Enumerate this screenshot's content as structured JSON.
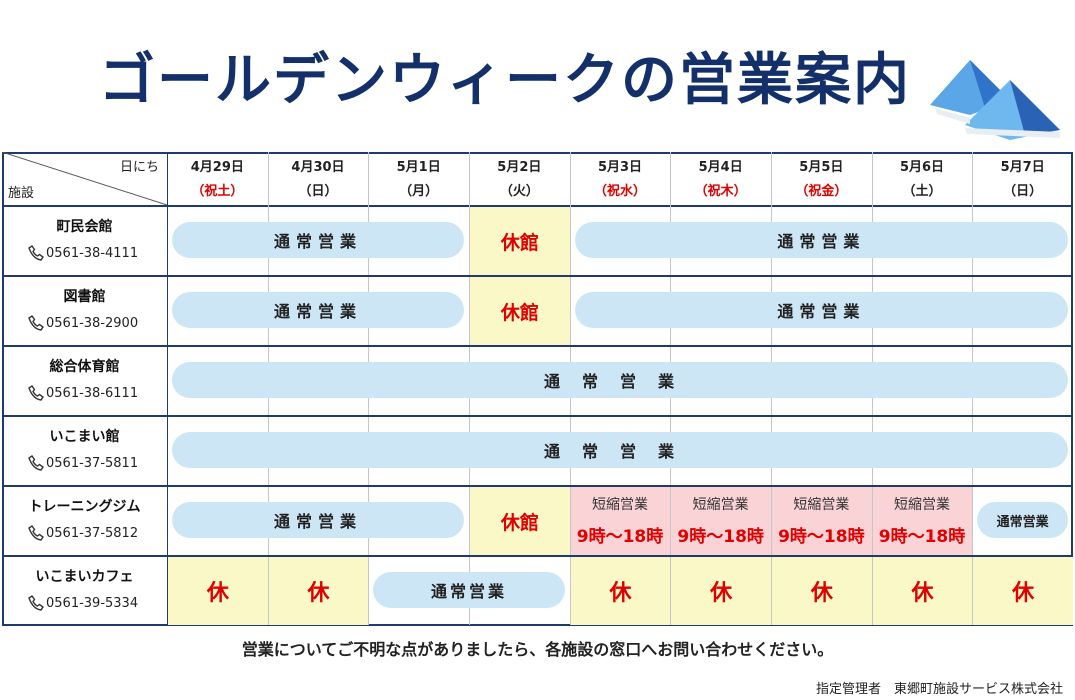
{
  "header": {
    "title": "ゴールデンウィークの営業案内"
  },
  "table": {
    "corner_top": "日にち",
    "corner_bottom": "施設",
    "days": [
      {
        "date": "4月29日",
        "day": "（祝土）",
        "color": "#e00000"
      },
      {
        "date": "4月30日",
        "day": "（日）",
        "color": "#222222"
      },
      {
        "date": "5月1日",
        "day": "（月）",
        "color": "#222222"
      },
      {
        "date": "5月2日",
        "day": "（火）",
        "color": "#222222"
      },
      {
        "date": "5月3日",
        "day": "（祝水）",
        "color": "#e00000"
      },
      {
        "date": "5月4日",
        "day": "（祝木）",
        "color": "#e00000"
      },
      {
        "date": "5月5日",
        "day": "（祝金）",
        "color": "#e00000"
      },
      {
        "date": "5月6日",
        "day": "（土）",
        "color": "#222222"
      },
      {
        "date": "5月7日",
        "day": "（日）",
        "color": "#222222"
      }
    ],
    "facilities": [
      {
        "name": "町民会館",
        "phone": "0561-38-4111",
        "segments": [
          {
            "span": 3,
            "style": "pill",
            "label": "通常営業"
          },
          {
            "span": 1,
            "style": "closed",
            "label": "休館"
          },
          {
            "span": 5,
            "style": "pill",
            "label": "通常営業"
          }
        ]
      },
      {
        "name": "図書館",
        "phone": "0561-38-2900",
        "segments": [
          {
            "span": 3,
            "style": "pill",
            "label": "通常営業"
          },
          {
            "span": 1,
            "style": "closed",
            "label": "休館"
          },
          {
            "span": 5,
            "style": "pill",
            "label": "通常営業"
          }
        ]
      },
      {
        "name": "総合体育館",
        "phone": "0561-38-6111",
        "segments": [
          {
            "span": 9,
            "style": "pill",
            "label": "通常営業"
          }
        ]
      },
      {
        "name": "いこまい館",
        "phone": "0561-37-5811",
        "segments": [
          {
            "span": 9,
            "style": "pill",
            "label": "通常営業"
          }
        ]
      },
      {
        "name": "トレーニングジム",
        "phone": "0561-37-5812",
        "segments": [
          {
            "span": 3,
            "style": "pill",
            "label": "通常営業"
          },
          {
            "span": 1,
            "style": "closed",
            "label": "休館"
          },
          {
            "span": 1,
            "style": "short",
            "label": "短縮営業",
            "hours": "9時～18時"
          },
          {
            "span": 1,
            "style": "short",
            "label": "短縮営業",
            "hours": "9時～18時"
          },
          {
            "span": 1,
            "style": "short",
            "label": "短縮営業",
            "hours": "9時～18時"
          },
          {
            "span": 1,
            "style": "short",
            "label": "短縮営業",
            "hours": "9時～18時"
          },
          {
            "span": 1,
            "style": "pill",
            "label": "通常営業"
          }
        ]
      },
      {
        "name": "いこまいカフェ",
        "phone": "0561-39-5334",
        "segments": [
          {
            "span": 1,
            "style": "closed",
            "label": "休"
          },
          {
            "span": 1,
            "style": "closed",
            "label": "休"
          },
          {
            "span": 2,
            "style": "pill",
            "label": "通常営業"
          },
          {
            "span": 1,
            "style": "closed",
            "label": "休"
          },
          {
            "span": 1,
            "style": "closed",
            "label": "休"
          },
          {
            "span": 1,
            "style": "closed",
            "label": "休"
          },
          {
            "span": 1,
            "style": "closed",
            "label": "休"
          },
          {
            "span": 1,
            "style": "closed",
            "label": "休"
          }
        ]
      }
    ]
  },
  "footer": {
    "note": "営業についてご不明な点がありましたら、各施設の窓口へお問い合わせください。",
    "credit": "指定管理者　東郷町施設サービス株式会社"
  }
}
